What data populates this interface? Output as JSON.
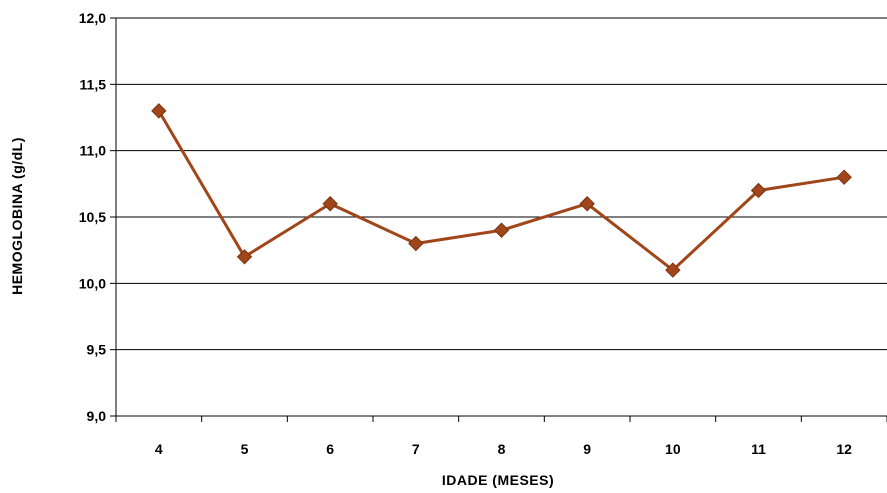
{
  "chart_data": {
    "type": "line",
    "title": "",
    "xlabel": "IDADE (MESES)",
    "ylabel": "HEMOGLOBINA (g/dL)",
    "categories": [
      "4",
      "5",
      "6",
      "7",
      "8",
      "9",
      "10",
      "11",
      "12"
    ],
    "series": [
      {
        "values": [
          11.3,
          10.2,
          10.6,
          10.3,
          10.4,
          10.6,
          10.1,
          10.7,
          10.8
        ]
      }
    ],
    "ylim": [
      9.0,
      12.0
    ],
    "yticks": [
      9.0,
      9.5,
      10.0,
      10.5,
      11.0,
      11.5,
      12.0
    ],
    "ytick_labels": [
      "9,0",
      "9,5",
      "10,0",
      "10,5",
      "11,0",
      "11,5",
      "12,0"
    ],
    "grid": "horizontal",
    "legend": "none",
    "colors": {
      "line": "#a0461a",
      "marker": "#a0461a",
      "grid": "#000000"
    }
  }
}
